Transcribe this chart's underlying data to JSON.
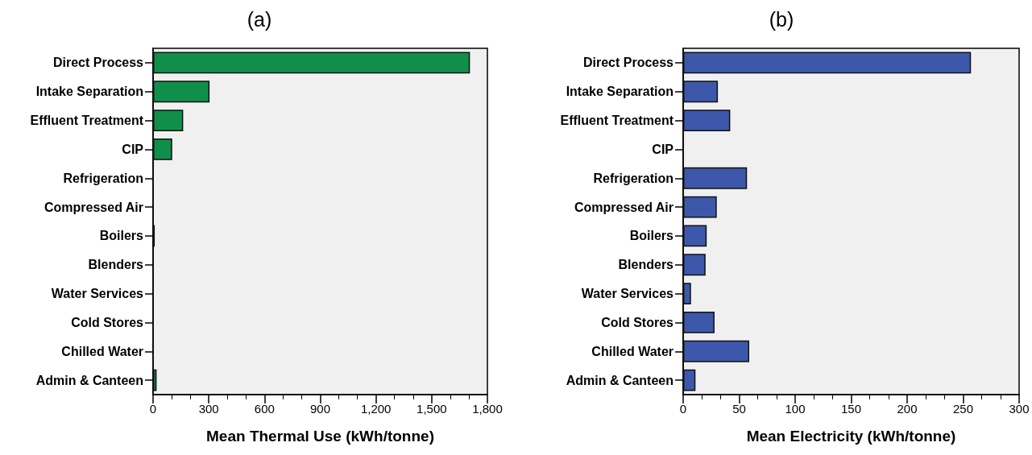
{
  "chart_data": [
    {
      "type": "bar",
      "orientation": "horizontal",
      "title": "(a)",
      "xlabel": "Mean Thermal Use (kWh/tonne)",
      "categories": [
        "Direct Process",
        "Intake Separation",
        "Effluent Treatment",
        "CIP",
        "Refrigeration",
        "Compressed Air",
        "Boilers",
        "Blenders",
        "Water Services",
        "Cold Stores",
        "Chilled Water",
        "Admin & Canteen"
      ],
      "values": [
        1706,
        304,
        162,
        103,
        0,
        0,
        9,
        0,
        0,
        0,
        0,
        19
      ],
      "color": "#108f4a",
      "xlim": [
        0,
        1800
      ],
      "xticks": [
        0,
        300,
        600,
        900,
        {
          "value": 1200,
          "label": "1,200"
        },
        {
          "value": 1500,
          "label": "1,500"
        },
        {
          "value": 1800,
          "label": "1,800"
        }
      ],
      "grid": false
    },
    {
      "type": "bar",
      "orientation": "horizontal",
      "title": "(b)",
      "xlabel": "Mean Electricity (kWh/tonne)",
      "categories": [
        "Direct Process",
        "Intake Separation",
        "Effluent Treatment",
        "CIP",
        "Refrigeration",
        "Compressed Air",
        "Boilers",
        "Blenders",
        "Water Services",
        "Cold Stores",
        "Chilled Water",
        "Admin & Canteen"
      ],
      "values": [
        257,
        31,
        42,
        0,
        57,
        30,
        21,
        20,
        7,
        28,
        59,
        11
      ],
      "color": "#3d58ab",
      "xlim": [
        0,
        300
      ],
      "xticks": [
        0,
        50,
        100,
        150,
        200,
        250,
        300
      ],
      "grid": false
    }
  ]
}
